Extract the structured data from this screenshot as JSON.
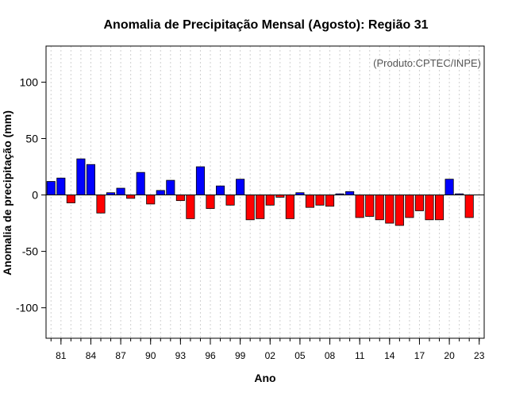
{
  "chart_data": {
    "type": "bar",
    "title": "Anomalia de Precipitação Mensal (Agosto): Região 31",
    "xlabel": "Ano",
    "ylabel": "Anomalia de precipitação (mm)",
    "annotation": "(Produto:CPTEC/INPE)",
    "ylim": [
      -127,
      132
    ],
    "yticks": [
      -100,
      -50,
      0,
      50,
      100
    ],
    "xtick_labels": [
      "81",
      "84",
      "87",
      "90",
      "93",
      "96",
      "99",
      "02",
      "05",
      "08",
      "11",
      "14",
      "17",
      "20",
      "23"
    ],
    "positive_color": "#0000ff",
    "negative_color": "#ff0000",
    "categories": [
      "1980",
      "1981",
      "1982",
      "1983",
      "1984",
      "1985",
      "1986",
      "1987",
      "1988",
      "1989",
      "1990",
      "1991",
      "1992",
      "1993",
      "1994",
      "1995",
      "1996",
      "1997",
      "1998",
      "1999",
      "2000",
      "2001",
      "2002",
      "2003",
      "2004",
      "2005",
      "2006",
      "2007",
      "2008",
      "2009",
      "2010",
      "2011",
      "2012",
      "2013",
      "2014",
      "2015",
      "2016",
      "2017",
      "2018",
      "2019",
      "2020",
      "2021",
      "2022",
      "2023"
    ],
    "values": [
      12,
      15,
      -7,
      32,
      27,
      -16,
      2,
      6,
      -3,
      20,
      -8,
      4,
      13,
      -5,
      -21,
      25,
      -12,
      8,
      -9,
      14,
      -22,
      -21,
      -9,
      -2,
      -21,
      2,
      -11,
      -9,
      -10,
      1,
      3,
      -20,
      -19,
      -22,
      -25,
      -27,
      -20,
      -14,
      -22,
      -22,
      14,
      1,
      -20,
      0
    ]
  }
}
